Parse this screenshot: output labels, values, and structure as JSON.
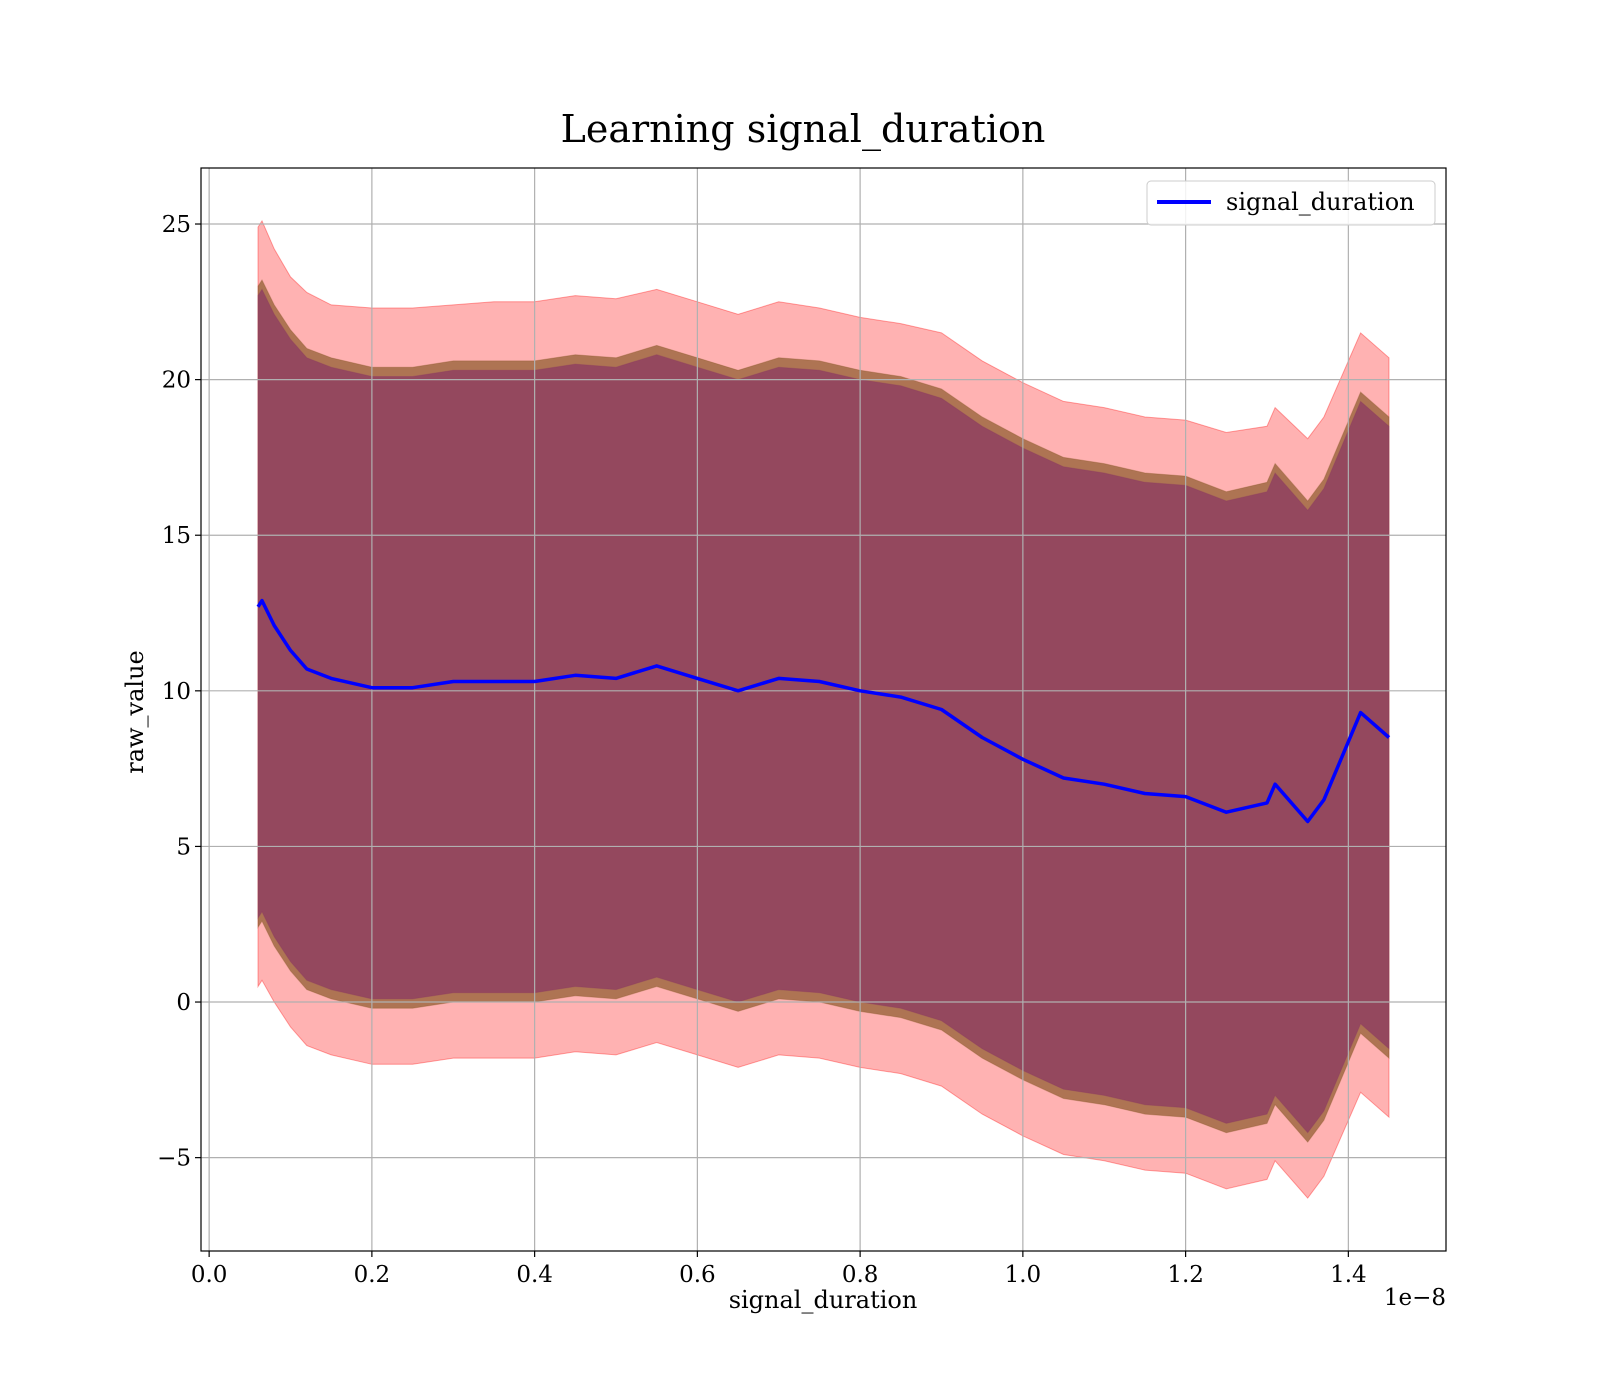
{
  "chart_data": {
    "type": "line",
    "title": "Learning signal_duration",
    "xlabel": "signal_duration",
    "ylabel": "raw_value",
    "x_offset_label": "1e−8",
    "xlim": [
      -0.01,
      1.52
    ],
    "ylim": [
      -8,
      26.8
    ],
    "x_ticks": [
      0.0,
      0.2,
      0.4,
      0.6,
      0.8,
      1.0,
      1.2,
      1.4
    ],
    "x_tick_labels": [
      "0.0",
      "0.2",
      "0.4",
      "0.6",
      "0.8",
      "1.0",
      "1.2",
      "1.4"
    ],
    "y_ticks": [
      -5,
      0,
      5,
      10,
      15,
      20,
      25
    ],
    "y_tick_labels": [
      "−5",
      "0",
      "5",
      "10",
      "15",
      "20",
      "25"
    ],
    "grid": true,
    "legend": {
      "position": "top-right",
      "entries": [
        "signal_duration"
      ]
    },
    "colors": {
      "line": "#0000ff",
      "outer_band": "#ff0000",
      "middle_band": "#8b5a2b",
      "inner_band": "#8b3a62"
    },
    "series": [
      {
        "name": "signal_duration",
        "x": [
          0.06,
          0.065,
          0.08,
          0.1,
          0.12,
          0.15,
          0.2,
          0.25,
          0.3,
          0.35,
          0.4,
          0.45,
          0.5,
          0.55,
          0.6,
          0.65,
          0.7,
          0.75,
          0.8,
          0.85,
          0.9,
          0.95,
          1.0,
          1.05,
          1.1,
          1.15,
          1.2,
          1.25,
          1.3,
          1.31,
          1.35,
          1.37,
          1.415,
          1.45
        ],
        "y": [
          12.7,
          12.9,
          12.1,
          11.3,
          10.7,
          10.4,
          10.1,
          10.1,
          10.3,
          10.3,
          10.3,
          10.5,
          10.4,
          10.8,
          10.4,
          10.0,
          10.4,
          10.3,
          10.0,
          9.8,
          9.4,
          8.5,
          7.8,
          7.2,
          7.0,
          6.7,
          6.6,
          6.1,
          6.4,
          7.0,
          5.8,
          6.5,
          9.3,
          8.5
        ]
      }
    ],
    "bands": [
      {
        "x": [
          0.06,
          0.065,
          0.08,
          0.1,
          0.12,
          0.15,
          0.2,
          0.25,
          0.3,
          0.35,
          0.4,
          0.45,
          0.5,
          0.55,
          0.6,
          0.65,
          0.7,
          0.75,
          0.8,
          0.85,
          0.9,
          0.95,
          1.0,
          1.05,
          1.1,
          1.15,
          1.2,
          1.25,
          1.3,
          1.31,
          1.35,
          1.37,
          1.415,
          1.45
        ],
        "upper": [
          24.9,
          25.1,
          24.2,
          23.3,
          22.8,
          22.4,
          22.3,
          22.3,
          22.4,
          22.5,
          22.5,
          22.7,
          22.6,
          22.9,
          22.5,
          22.1,
          22.5,
          22.3,
          22.0,
          21.8,
          21.5,
          20.6,
          19.9,
          19.3,
          19.1,
          18.8,
          18.7,
          18.3,
          18.5,
          19.1,
          18.1,
          18.8,
          21.5,
          20.7
        ],
        "lower": [
          0.5,
          0.7,
          0.0,
          -0.8,
          -1.4,
          -1.7,
          -2.0,
          -2.0,
          -1.8,
          -1.8,
          -1.8,
          -1.6,
          -1.7,
          -1.3,
          -1.7,
          -2.1,
          -1.7,
          -1.8,
          -2.1,
          -2.3,
          -2.7,
          -3.6,
          -4.3,
          -4.9,
          -5.1,
          -5.4,
          -5.5,
          -6.0,
          -5.7,
          -5.1,
          -6.3,
          -5.6,
          -2.9,
          -3.7
        ]
      },
      {
        "x": [
          0.06,
          0.065,
          0.08,
          0.1,
          0.12,
          0.15,
          0.2,
          0.25,
          0.3,
          0.35,
          0.4,
          0.45,
          0.5,
          0.55,
          0.6,
          0.65,
          0.7,
          0.75,
          0.8,
          0.85,
          0.9,
          0.95,
          1.0,
          1.05,
          1.1,
          1.15,
          1.2,
          1.25,
          1.3,
          1.31,
          1.35,
          1.37,
          1.415,
          1.45
        ],
        "upper": [
          23.0,
          23.2,
          22.4,
          21.6,
          21.0,
          20.7,
          20.4,
          20.4,
          20.6,
          20.6,
          20.6,
          20.8,
          20.7,
          21.1,
          20.7,
          20.3,
          20.7,
          20.6,
          20.3,
          20.1,
          19.7,
          18.8,
          18.1,
          17.5,
          17.3,
          17.0,
          16.9,
          16.4,
          16.7,
          17.3,
          16.1,
          16.8,
          19.6,
          18.8
        ],
        "lower": [
          2.4,
          2.6,
          1.8,
          1.0,
          0.4,
          0.1,
          -0.2,
          -0.2,
          0.0,
          0.0,
          0.0,
          0.2,
          0.1,
          0.5,
          0.1,
          -0.3,
          0.1,
          0.0,
          -0.3,
          -0.5,
          -0.9,
          -1.8,
          -2.5,
          -3.1,
          -3.3,
          -3.6,
          -3.7,
          -4.2,
          -3.9,
          -3.3,
          -4.5,
          -3.8,
          -1.0,
          -1.8
        ]
      },
      {
        "x": [
          0.06,
          0.065,
          0.08,
          0.1,
          0.12,
          0.15,
          0.2,
          0.25,
          0.3,
          0.35,
          0.4,
          0.45,
          0.5,
          0.55,
          0.6,
          0.65,
          0.7,
          0.75,
          0.8,
          0.85,
          0.9,
          0.95,
          1.0,
          1.05,
          1.1,
          1.15,
          1.2,
          1.25,
          1.3,
          1.31,
          1.35,
          1.37,
          1.415,
          1.45
        ],
        "upper": [
          22.7,
          22.9,
          22.1,
          21.3,
          20.7,
          20.4,
          20.1,
          20.1,
          20.3,
          20.3,
          20.3,
          20.5,
          20.4,
          20.8,
          20.4,
          20.0,
          20.4,
          20.3,
          20.0,
          19.8,
          19.4,
          18.5,
          17.8,
          17.2,
          17.0,
          16.7,
          16.6,
          16.1,
          16.4,
          17.0,
          15.8,
          16.5,
          19.3,
          18.5
        ],
        "lower": [
          2.7,
          2.9,
          2.1,
          1.3,
          0.7,
          0.4,
          0.1,
          0.1,
          0.3,
          0.3,
          0.3,
          0.5,
          0.4,
          0.8,
          0.4,
          0.0,
          0.4,
          0.3,
          0.0,
          -0.2,
          -0.6,
          -1.5,
          -2.2,
          -2.8,
          -3.0,
          -3.3,
          -3.4,
          -3.9,
          -3.6,
          -3.0,
          -4.2,
          -3.5,
          -0.7,
          -1.5
        ]
      }
    ]
  }
}
